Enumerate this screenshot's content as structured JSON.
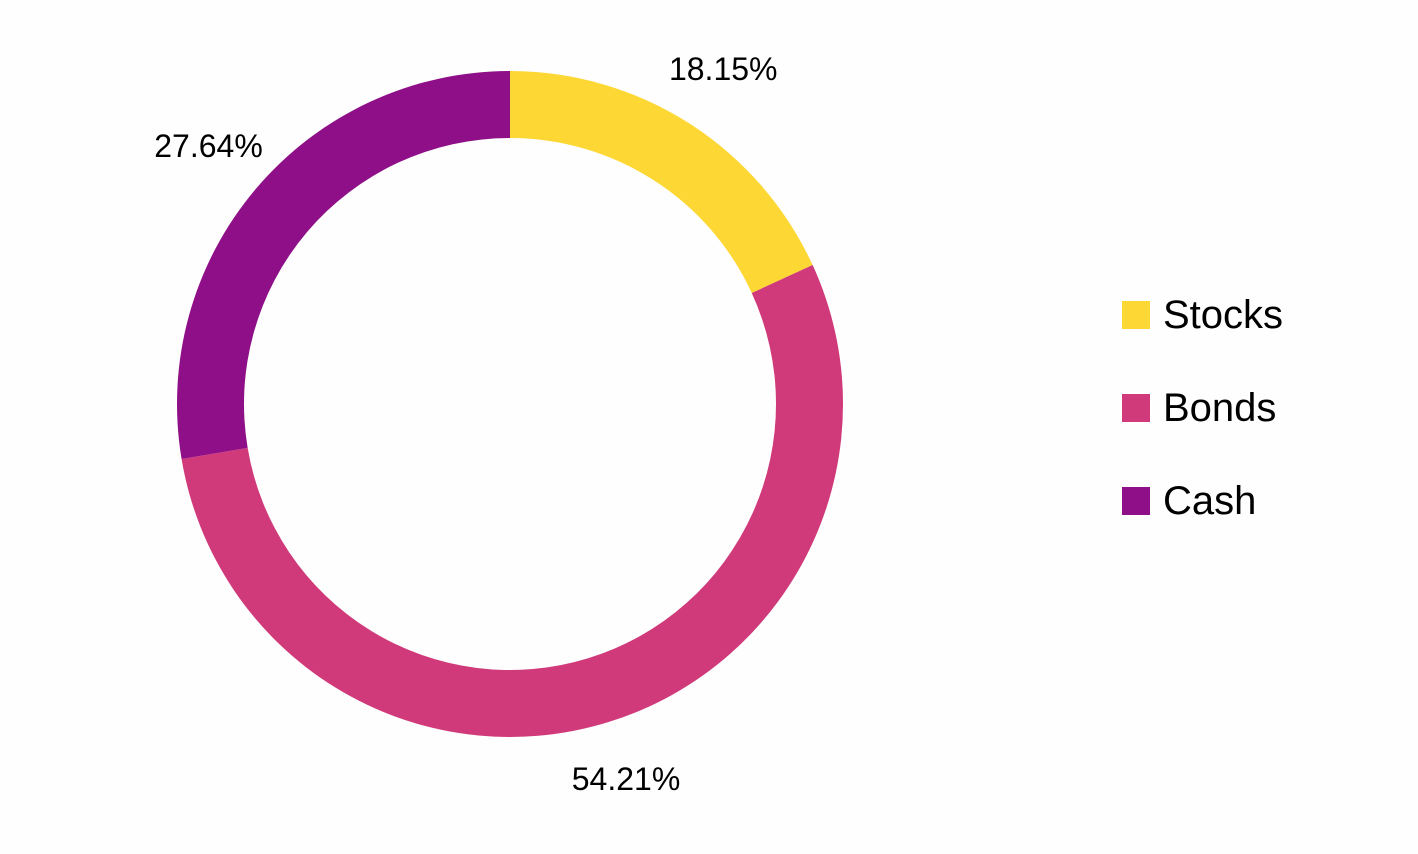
{
  "chart_data": {
    "type": "pie",
    "variant": "donut",
    "categories": [
      "Stocks",
      "Bonds",
      "Cash"
    ],
    "values": [
      18.15,
      54.21,
      27.64
    ],
    "labels": [
      "18.15%",
      "54.21%",
      "27.64%"
    ],
    "colors": [
      "#fdd835",
      "#d03a7a",
      "#8e0f87"
    ],
    "legend": "right"
  }
}
